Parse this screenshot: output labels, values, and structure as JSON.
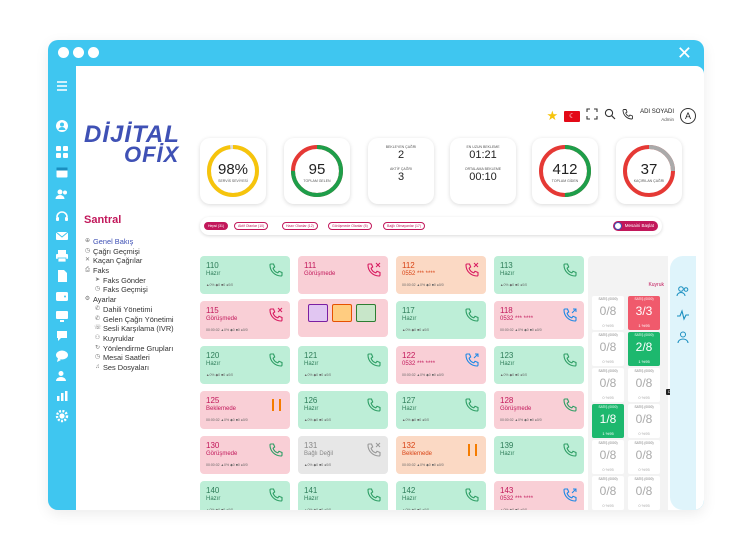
{
  "header": {
    "user_name": "ADI SOYADI",
    "user_role": "Admin",
    "avatar_letter": "A"
  },
  "logo": {
    "line1": "DİJİTAL",
    "line2": "OFİX"
  },
  "stats": [
    {
      "value": "98%",
      "label": "SERVİS SEVİYESİ",
      "fraction": 0.98,
      "color": "#f6c40c"
    },
    {
      "value": "95",
      "label": "TOPLAM GELEN",
      "fraction": 0.75,
      "color": "#1e9e4a",
      "accent": "#e53935"
    },
    {
      "mini": [
        {
          "label": "BEKLEYEN ÇAĞRI",
          "value": "2"
        },
        {
          "label": "AKTİF ÇAĞRI",
          "value": "3"
        }
      ]
    },
    {
      "mini": [
        {
          "label": "EN UZUN BEKLEME",
          "value": "01:21"
        },
        {
          "label": "ORTALAMA BEKLEME",
          "value": "00:10"
        }
      ]
    },
    {
      "value": "412",
      "label": "TOPLAM GİDEN",
      "fraction": 0.5,
      "color": "#1e9e4a",
      "accent": "#e53935"
    },
    {
      "value": "37",
      "label": "KAÇIRILAN ÇAĞRI",
      "fraction": 0.25,
      "color": "#aaaaaa",
      "accent": "#e53935"
    }
  ],
  "sidebar": {
    "title": "Santral",
    "items": [
      {
        "label": "Genel Bakış",
        "glyph": "⊕",
        "active": true,
        "sub": false
      },
      {
        "label": "Çağrı Geçmişi",
        "glyph": "◷",
        "sub": false
      },
      {
        "label": "Kaçan Çağrılar",
        "glyph": "✕",
        "sub": false
      },
      {
        "label": "Faks",
        "glyph": "⎙",
        "sub": false
      },
      {
        "label": "Faks Gönder",
        "glyph": "➤",
        "sub": true
      },
      {
        "label": "Faks Geçmişi",
        "glyph": "◷",
        "sub": true
      },
      {
        "label": "Ayarlar",
        "glyph": "⚙",
        "sub": false
      },
      {
        "label": "Dahili Yönetimi",
        "glyph": "✆",
        "sub": true
      },
      {
        "label": "Gelen Çağrı Yönetimi",
        "glyph": "✆",
        "sub": true
      },
      {
        "label": "Sesli Karşılama (IVR)",
        "glyph": "☏",
        "sub": true
      },
      {
        "label": "Kuyruklar",
        "glyph": "⚇",
        "sub": true
      },
      {
        "label": "Yönlendirme Grupları",
        "glyph": "↻",
        "sub": true
      },
      {
        "label": "Mesai Saatleri",
        "glyph": "◷",
        "sub": true
      },
      {
        "label": "Ses Dosyaları",
        "glyph": "♫",
        "sub": true
      }
    ]
  },
  "filters": {
    "chips": [
      "Hepsi (31)",
      "Aktif Olanlar (10)",
      "Hazır Olanlar (12)",
      "Görüşmede Olanlar (5)",
      "Bağlı Olmayanlar (17)"
    ],
    "mesai_label": "Mesaini Başlat"
  },
  "cards": [
    {
      "ext": "110",
      "status": "Hazır",
      "meta": "▲0% ◆0 ■0 ●0/0",
      "color": "green",
      "icon": "phone"
    },
    {
      "ext": "111",
      "status": "Görüşmede",
      "meta": "",
      "color": "red",
      "icon": "phone-missed",
      "actions": true
    },
    {
      "ext": "112",
      "status": "0552 *** ****",
      "meta": "00:00:02 ▲0% ◆0 ■0 ●0/0",
      "color": "orange",
      "icon": "phone-missed"
    },
    {
      "ext": "113",
      "status": "Hazır",
      "meta": "▲0% ◆0 ■0 ●0/0",
      "color": "green",
      "icon": "phone"
    },
    {
      "ext": "115",
      "status": "Görüşmede",
      "meta": "00:00:02 ▲0% ◆0 ■0 ●0/0",
      "color": "red",
      "icon": "phone-missed"
    },
    {
      "ext": "117",
      "status": "Hazır",
      "meta": "▲0% ◆0 ■0 ●0/0",
      "color": "green",
      "icon": "phone"
    },
    {
      "ext": "118",
      "status": "0532 *** ****",
      "meta": "00:00:02 ▲0% ◆0 ■0 ●0/0",
      "color": "red",
      "icon": "phone-out"
    },
    {
      "ext": "120",
      "status": "Hazır",
      "meta": "▲0% ◆0 ■0 ●0/0",
      "color": "green",
      "icon": "phone"
    },
    {
      "ext": "121",
      "status": "Hazır",
      "meta": "▲0% ◆0 ■0 ●0/0",
      "color": "green",
      "icon": "phone"
    },
    {
      "ext": "122",
      "status": "0532 *** ****",
      "meta": "00:00:02 ▲0% ◆0 ■0 ●0/0",
      "color": "red",
      "icon": "phone-out"
    },
    {
      "ext": "123",
      "status": "Hazır",
      "meta": "▲0% ◆0 ■0 ●0/0",
      "color": "green",
      "icon": "phone"
    },
    {
      "ext": "125",
      "status": "Beklemede",
      "meta": "00:00:02 ▲0% ◆0 ■0 ●0/0",
      "color": "red",
      "icon": "pause"
    },
    {
      "ext": "126",
      "status": "Hazır",
      "meta": "▲0% ◆0 ■0 ●0/0",
      "color": "green",
      "icon": "phone"
    },
    {
      "ext": "127",
      "status": "Hazır",
      "meta": "▲0% ◆0 ■0 ●0/0",
      "color": "green",
      "icon": "phone"
    },
    {
      "ext": "128",
      "status": "Görüşmede",
      "meta": "00:00:02 ▲0% ◆0 ■0 ●0/0",
      "color": "red",
      "icon": "phone"
    },
    {
      "ext": "130",
      "status": "Görüşmede",
      "meta": "00:00:02 ▲0% ◆0 ■0 ●0/0",
      "color": "red",
      "icon": "phone"
    },
    {
      "ext": "131",
      "status": "Bağlı Değil",
      "meta": "▲0% ◆0 ■0 ●0/0",
      "color": "gray",
      "icon": "phone-off"
    },
    {
      "ext": "132",
      "status": "Beklemede",
      "meta": "00:00:02 ▲0% ◆0 ■0 ●0/0",
      "color": "orange",
      "icon": "pause"
    },
    {
      "ext": "139",
      "status": "Hazır",
      "meta": "",
      "color": "green",
      "icon": "phone"
    },
    {
      "ext": "140",
      "status": "Hazır",
      "meta": "▲0% ◆0 ■0 ●0/0",
      "color": "green",
      "icon": "phone"
    },
    {
      "ext": "141",
      "status": "Hazır",
      "meta": "▲0% ◆0 ■0 ●0/0",
      "color": "green",
      "icon": "phone"
    },
    {
      "ext": "142",
      "status": "Hazır",
      "meta": "▲0% ◆0 ■0 ●0/0",
      "color": "green",
      "icon": "phone"
    },
    {
      "ext": "143",
      "status": "0532 *** ****",
      "meta": "▲0% ◆0 ■0 ●0/0",
      "color": "red",
      "icon": "phone-out"
    }
  ],
  "queue": {
    "title": "Kuyruk",
    "tooltip": "Destek Hattı",
    "boxes": [
      {
        "label": "SATIŞ (0000)",
        "value": "0/8",
        "pct": "0 %95",
        "color": "plain"
      },
      {
        "label": "SATIŞ (0000)",
        "value": "3/3",
        "pct": "1 %95",
        "color": "red"
      },
      {
        "label": "SATIŞ (0000)",
        "value": "0/8",
        "pct": "0 %95",
        "color": "plain"
      },
      {
        "label": "SATIŞ (0000)",
        "value": "2/8",
        "pct": "1 %95",
        "color": "green"
      },
      {
        "label": "SATIŞ (0000)",
        "value": "0/8",
        "pct": "0 %95",
        "color": "plain"
      },
      {
        "label": "SATIŞ (0000)",
        "value": "0/8",
        "pct": "0 %95",
        "color": "plain"
      },
      {
        "label": "SATIŞ (0000)",
        "value": "1/8",
        "pct": "1 %95",
        "color": "green"
      },
      {
        "label": "SATIŞ (0000)",
        "value": "0/8",
        "pct": "0 %95",
        "color": "plain"
      },
      {
        "label": "SATIŞ (0000)",
        "value": "0/8",
        "pct": "0 %95",
        "color": "plain"
      },
      {
        "label": "SATIŞ (0000)",
        "value": "0/8",
        "pct": "0 %95",
        "color": "plain"
      },
      {
        "label": "SATIŞ (0000)",
        "value": "0/8",
        "pct": "0 %95",
        "color": "plain"
      },
      {
        "label": "SATIŞ (0000)",
        "value": "0/8",
        "pct": "0 %95",
        "color": "plain"
      }
    ]
  }
}
